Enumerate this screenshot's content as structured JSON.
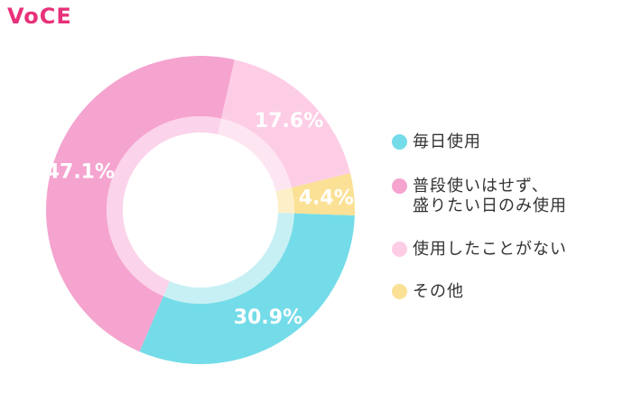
{
  "brand": {
    "logo_text": "VoCE"
  },
  "chart_data": {
    "type": "pie",
    "style": "donut",
    "categories": [
      "毎日使用",
      "普段使いはせず、\n盛りたい日のみ使用",
      "使用したことがない",
      "その他"
    ],
    "values": [
      30.9,
      47.1,
      17.6,
      4.4
    ],
    "labels": [
      "30.9%",
      "47.1%",
      "17.6%",
      "4.4%"
    ],
    "colors": [
      "#74dce8",
      "#f5a3cf",
      "#fdcde6",
      "#fbe196"
    ],
    "inner_colors": [
      "#c7f0f4",
      "#fbd3ea",
      "#fde6f2",
      "#fdf0c9"
    ],
    "legend_position": "right"
  }
}
